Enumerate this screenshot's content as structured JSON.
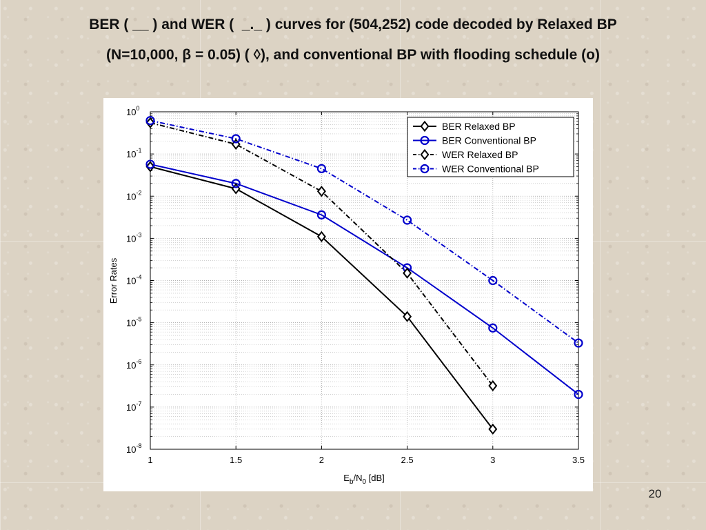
{
  "slide": {
    "title_line1": "BER ( __ ) and WER (  _._ ) curves for (504,252) code decoded by Relaxed BP",
    "title_line2": "(N=10,000, β = 0.05) ( ◊), and conventional BP with flooding schedule (o)",
    "page_number": "20"
  },
  "chart_data": {
    "type": "line",
    "title": "",
    "xlabel": "E_b/N_0 [dB]",
    "xlabel_parts": {
      "e": "E",
      "e_sub": "b",
      "slash": "/N",
      "n_sub": "0",
      "unit": " [dB]"
    },
    "ylabel": "Error Rates",
    "y_scale": "log",
    "xlim": [
      1,
      3.5
    ],
    "ylim": [
      1e-08,
      1
    ],
    "x_ticks": [
      "1",
      "1.5",
      "2",
      "2.5",
      "3",
      "3.5"
    ],
    "x_tick_values": [
      1,
      1.5,
      2,
      2.5,
      3,
      3.5
    ],
    "y_tick_exponents": [
      "0",
      "-1",
      "-2",
      "-3",
      "-4",
      "-5",
      "-6",
      "-7",
      "-8"
    ],
    "y_tick_base": "10",
    "grid": true,
    "legend_position": "top-right",
    "series": [
      {
        "name": "BER Relaxed BP",
        "color": "#000000",
        "line_style": "solid",
        "marker": "diamond",
        "x": [
          1,
          1.5,
          2,
          2.5,
          3
        ],
        "y": [
          0.05,
          0.015,
          0.0011,
          1.4e-05,
          3e-08
        ]
      },
      {
        "name": "BER Conventional BP",
        "color": "#0000cc",
        "line_style": "solid",
        "marker": "circle",
        "x": [
          1,
          1.5,
          2,
          2.5,
          3,
          3.5
        ],
        "y": [
          0.057,
          0.02,
          0.0036,
          0.0002,
          7.5e-06,
          2e-07
        ]
      },
      {
        "name": "WER Relaxed BP",
        "color": "#000000",
        "line_style": "dashdot",
        "marker": "diamond",
        "x": [
          1,
          1.5,
          2,
          2.5,
          3
        ],
        "y": [
          0.55,
          0.17,
          0.013,
          0.00015,
          3.2e-07
        ]
      },
      {
        "name": "WER Conventional BP",
        "color": "#0000cc",
        "line_style": "dashdot",
        "marker": "circle",
        "x": [
          1,
          1.5,
          2,
          2.5,
          3,
          3.5
        ],
        "y": [
          0.62,
          0.23,
          0.045,
          0.0027,
          0.0001,
          3.3e-06
        ]
      }
    ]
  }
}
